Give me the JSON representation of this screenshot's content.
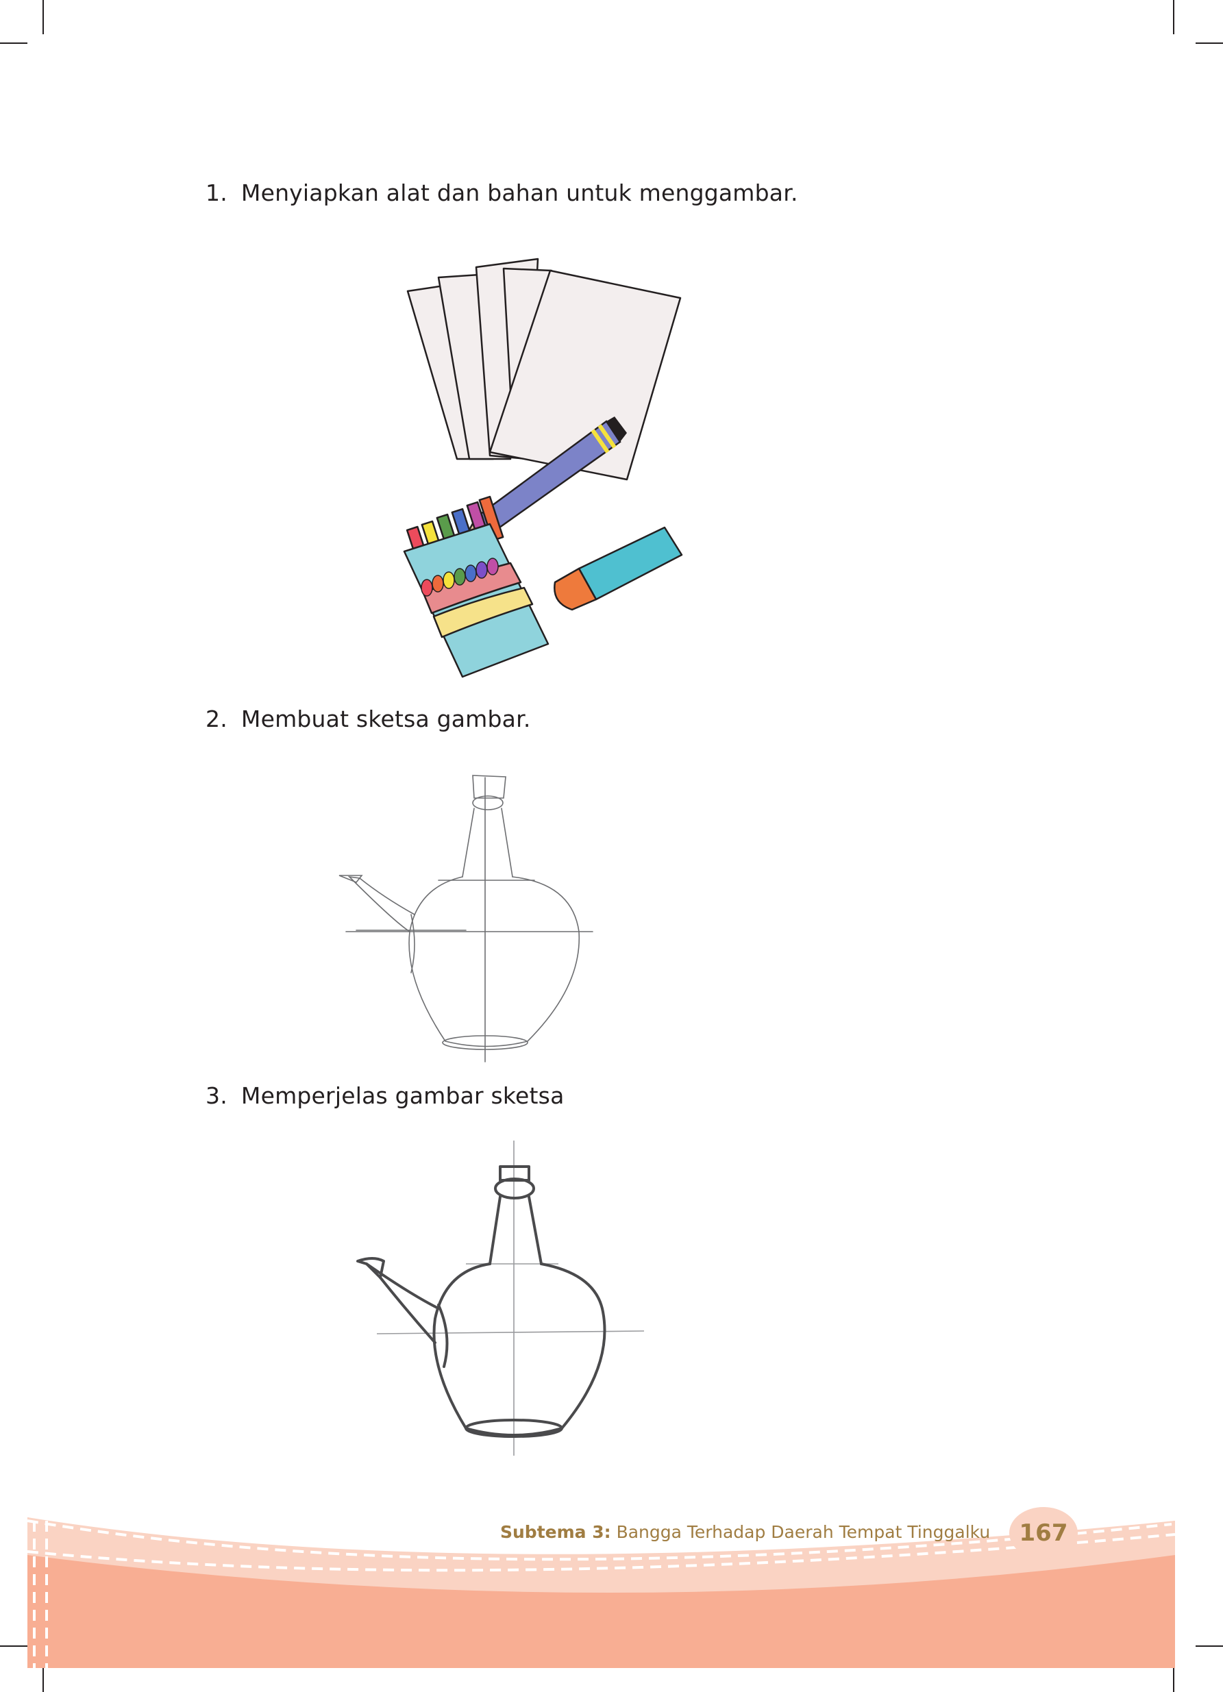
{
  "steps": [
    {
      "number": "1.",
      "text": "Menyiapkan alat dan bahan untuk menggambar."
    },
    {
      "number": "2.",
      "text": "Membuat sketsa gambar."
    },
    {
      "number": "3.",
      "text": "Memperjelas gambar sketsa"
    }
  ],
  "footer": {
    "subtheme_label": "Subtema 3:",
    "subtheme_title": "Bangga Terhadap Daerah Tempat Tinggalku",
    "page_number": "167"
  },
  "colors": {
    "footer_band": "#f8ae93",
    "footer_light": "#fad3c3",
    "footer_text": "#a07d42"
  },
  "icons": [
    "paper-icon",
    "pencil-icon",
    "crayon-box-icon",
    "eraser-icon",
    "teapot-sketch-icon",
    "teapot-refined-icon"
  ]
}
